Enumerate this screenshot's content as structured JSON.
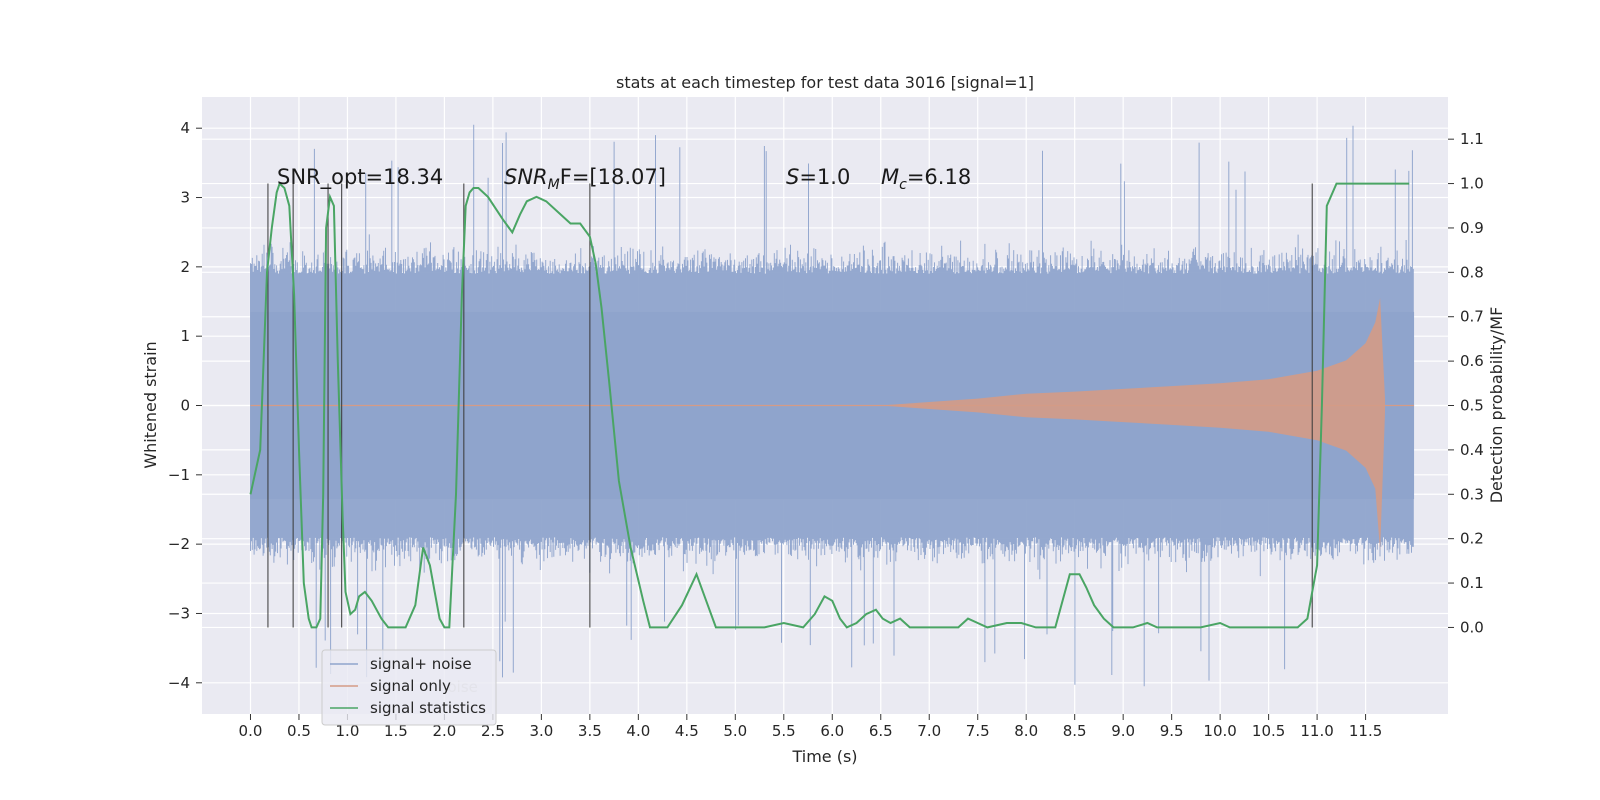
{
  "chart_data": {
    "type": "line",
    "title": "stats at each timestep for test data 3016 [signal=1]",
    "xlabel": "Time (s)",
    "ylabel": "Whitened strain",
    "ylabel_right": "Detection probability/MF",
    "xlim": [
      -0.5,
      12.35
    ],
    "ylim": [
      -4.45,
      4.45
    ],
    "ylim_right": [
      -0.195,
      1.195
    ],
    "x_ticks": [
      "0.0",
      "0.5",
      "1.0",
      "1.5",
      "2.0",
      "2.5",
      "3.0",
      "3.5",
      "4.0",
      "4.5",
      "5.0",
      "5.5",
      "6.0",
      "6.5",
      "7.0",
      "7.5",
      "8.0",
      "8.5",
      "9.0",
      "9.5",
      "10.0",
      "10.5",
      "11.0",
      "11.5"
    ],
    "y_ticks": [
      "4",
      "3",
      "2",
      "1",
      "0",
      "−1",
      "−2",
      "−3",
      "−4"
    ],
    "y_right_ticks": [
      "1.1",
      "1.0",
      "0.9",
      "0.8",
      "0.7",
      "0.6",
      "0.5",
      "0.4",
      "0.3",
      "0.2",
      "0.1",
      "0.0"
    ],
    "grid": true,
    "legend_position": "lower-left",
    "series": [
      {
        "name": "signal+ noise",
        "color": "#8fa4cc",
        "description_values": {
          "x_range": [
            0.0,
            12.0
          ],
          "typical_envelope": [
            -1.9,
            1.9
          ],
          "peak_max": 4.05,
          "peak_min": -4.05
        }
      },
      {
        "name": "signal only",
        "color": "#d49b86",
        "envelope": {
          "x": [
            6.5,
            7.0,
            7.5,
            8.0,
            8.5,
            9.0,
            9.5,
            10.0,
            10.5,
            11.0,
            11.3,
            11.5,
            11.6,
            11.65,
            11.7
          ],
          "amp": [
            0.0,
            0.05,
            0.1,
            0.17,
            0.2,
            0.24,
            0.28,
            0.32,
            0.38,
            0.5,
            0.65,
            0.9,
            1.2,
            1.55,
            0.1
          ]
        }
      },
      {
        "name": "signal statistics",
        "color": "#4aa564",
        "x": [
          0.0,
          0.1,
          0.17,
          0.22,
          0.27,
          0.3,
          0.35,
          0.4,
          0.45,
          0.5,
          0.55,
          0.6,
          0.63,
          0.68,
          0.72,
          0.75,
          0.78,
          0.82,
          0.86,
          0.9,
          0.95,
          0.98,
          1.03,
          1.08,
          1.12,
          1.18,
          1.25,
          1.35,
          1.42,
          1.5,
          1.6,
          1.7,
          1.78,
          1.85,
          1.9,
          1.95,
          2.0,
          2.05,
          2.12,
          2.18,
          2.22,
          2.26,
          2.3,
          2.35,
          2.45,
          2.6,
          2.7,
          2.78,
          2.85,
          2.95,
          3.05,
          3.2,
          3.3,
          3.4,
          3.5,
          3.56,
          3.62,
          3.7,
          3.8,
          3.92,
          4.05,
          4.12,
          4.2,
          4.3,
          4.45,
          4.6,
          4.7,
          4.8,
          4.9,
          5.0,
          5.3,
          5.5,
          5.7,
          5.82,
          5.92,
          6.0,
          6.08,
          6.15,
          6.25,
          6.35,
          6.45,
          6.52,
          6.6,
          6.7,
          6.8,
          6.95,
          7.1,
          7.3,
          7.4,
          7.5,
          7.6,
          7.8,
          7.95,
          8.1,
          8.3,
          8.45,
          8.55,
          8.62,
          8.7,
          8.8,
          8.9,
          9.0,
          9.1,
          9.25,
          9.35,
          9.5,
          9.8,
          10.0,
          10.1,
          10.3,
          10.6,
          10.8,
          10.9,
          10.95,
          11.0,
          11.05,
          11.1,
          11.2,
          11.5,
          11.95
        ],
        "y": [
          0.3,
          0.4,
          0.8,
          0.9,
          0.98,
          1.0,
          0.99,
          0.95,
          0.75,
          0.4,
          0.1,
          0.02,
          0.0,
          0.0,
          0.02,
          0.3,
          0.9,
          0.97,
          0.95,
          0.6,
          0.25,
          0.08,
          0.03,
          0.04,
          0.07,
          0.08,
          0.06,
          0.02,
          0.0,
          0.0,
          0.0,
          0.05,
          0.18,
          0.14,
          0.08,
          0.02,
          0.0,
          0.0,
          0.3,
          0.75,
          0.95,
          0.98,
          0.99,
          0.99,
          0.97,
          0.92,
          0.89,
          0.93,
          0.96,
          0.97,
          0.96,
          0.93,
          0.91,
          0.91,
          0.88,
          0.82,
          0.72,
          0.55,
          0.33,
          0.18,
          0.06,
          0.0,
          0.0,
          0.0,
          0.05,
          0.12,
          0.06,
          0.0,
          0.0,
          0.0,
          0.0,
          0.01,
          0.0,
          0.03,
          0.07,
          0.06,
          0.02,
          0.0,
          0.01,
          0.03,
          0.04,
          0.02,
          0.01,
          0.02,
          0.0,
          0.0,
          0.0,
          0.0,
          0.02,
          0.01,
          0.0,
          0.01,
          0.01,
          0.0,
          0.0,
          0.12,
          0.12,
          0.09,
          0.05,
          0.02,
          0.0,
          0.0,
          0.0,
          0.01,
          0.0,
          0.0,
          0.0,
          0.01,
          0.0,
          0.0,
          0.0,
          0.0,
          0.02,
          0.08,
          0.14,
          0.5,
          0.95,
          1.0,
          1.0,
          1.0
        ]
      }
    ],
    "vertical_markers_x": [
      0.18,
      0.44,
      0.8,
      0.94,
      2.2,
      3.5,
      10.95
    ],
    "annotations": {
      "snr_opt": "SNR_opt=18.34",
      "snr_mf_prefix": "SNR",
      "snr_mf_sub": "M",
      "snr_mf_suffix": "F=[18.07]",
      "s_symbol": "S",
      "s_value": "=1.0",
      "mc_symbol": "M",
      "mc_sub": "c",
      "mc_value": "=6.18"
    },
    "legend": [
      "signal+ noise",
      "signal only",
      "signal statistics"
    ],
    "legend_behind_text": "noise"
  }
}
